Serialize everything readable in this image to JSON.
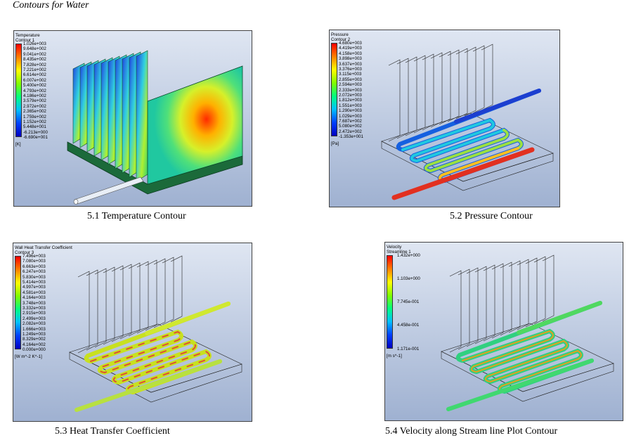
{
  "heading": "Contours for Water",
  "figures": [
    {
      "legend_title": "Temperature",
      "legend_subtitle": "Contour 1",
      "ticks": [
        "1.026e+003",
        "9.648e+002",
        "9.041e+002",
        "8.435e+002",
        "7.828e+002",
        "7.221e+002",
        "6.614e+002",
        "6.007e+002",
        "5.400e+002",
        "4.793e+002",
        "4.186e+002",
        "3.579e+002",
        "2.972e+002",
        "2.365e+002",
        "1.759e+002",
        "1.152e+002",
        "5.448e+001",
        "-6.213e+000",
        "-6.690e+001"
      ],
      "unit": "[K]",
      "caption": "5.1 Temperature Contour"
    },
    {
      "legend_title": "Pressure",
      "legend_subtitle": "Contour 2",
      "ticks": [
        "4.680e+003",
        "4.419e+003",
        "4.158e+003",
        "3.898e+003",
        "3.637e+003",
        "3.376e+003",
        "3.115e+003",
        "2.855e+003",
        "2.594e+003",
        "2.333e+003",
        "2.072e+003",
        "1.812e+003",
        "1.551e+003",
        "1.290e+003",
        "1.029e+003",
        "7.687e+002",
        "5.080e+002",
        "2.472e+002",
        "-1.353e+001"
      ],
      "unit": "[Pa]",
      "caption": "5.2 Pressure Contour"
    },
    {
      "legend_title": "Wall Heat Transfer Coefficient",
      "legend_subtitle": "Contour 3",
      "ticks": [
        "7.496e+003",
        "7.080e+003",
        "6.663e+003",
        "6.247e+003",
        "5.830e+003",
        "5.414e+003",
        "4.997e+003",
        "4.581e+003",
        "4.164e+003",
        "3.748e+003",
        "3.332e+003",
        "2.915e+003",
        "2.499e+003",
        "2.082e+003",
        "1.666e+003",
        "1.249e+003",
        "8.329e+002",
        "4.164e+002",
        "0.000e+000"
      ],
      "unit": "[W m^-2 K^-1]",
      "caption": "5.3 Heat Transfer Coefficient"
    },
    {
      "legend_title": "Velocity",
      "legend_subtitle": "Streamline 1",
      "ticks": [
        "1.432e+000",
        "1.103e+000",
        "7.745e-001",
        "4.458e-001",
        "1.171e-001"
      ],
      "unit": "[m s^-1]",
      "caption": "5.4 Velocity along Stream line Plot Contour"
    }
  ]
}
